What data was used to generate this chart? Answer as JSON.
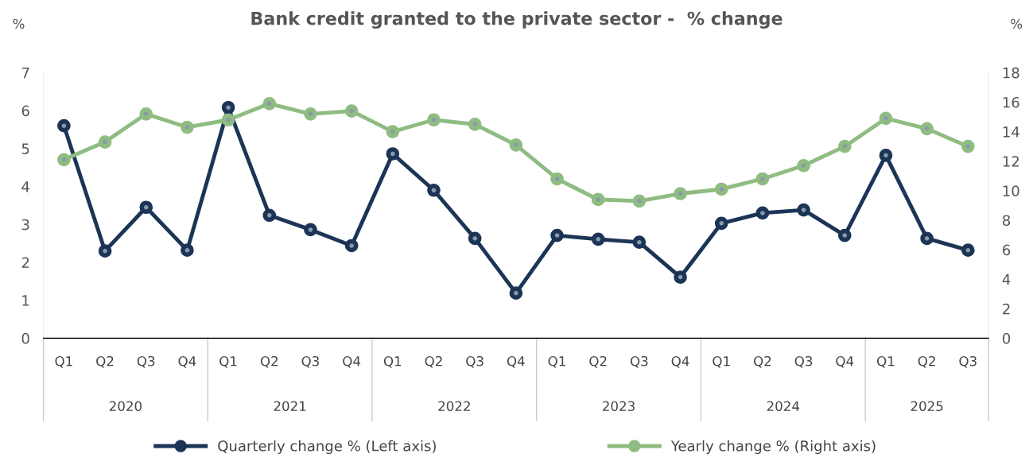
{
  "chart_data": {
    "type": "line",
    "title": "Bank credit granted to the private sector -  % change",
    "ylabel": "%",
    "y2label": "%",
    "categories": [
      "Q1",
      "Q2",
      "Q3",
      "Q4",
      "Q1",
      "Q2",
      "Q3",
      "Q4",
      "Q1",
      "Q2",
      "Q3",
      "Q4",
      "Q1",
      "Q2",
      "Q3",
      "Q4",
      "Q1",
      "Q2",
      "Q3",
      "Q4",
      "Q1",
      "Q2",
      "Q3"
    ],
    "annotations": [
      "2020",
      "2021",
      "2022",
      "2023",
      "2024",
      "2025"
    ],
    "series": [
      {
        "name": "Quarterly change % (Left axis)",
        "color": "#1c3557",
        "values": [
          5.6,
          2.3,
          3.45,
          2.32,
          6.08,
          3.24,
          2.86,
          2.44,
          4.86,
          3.9,
          2.63,
          1.19,
          2.71,
          2.61,
          2.53,
          1.61,
          3.03,
          3.3,
          3.38,
          2.71,
          4.82,
          2.63,
          2.32
        ]
      },
      {
        "name": "Yearly change % (Right axis)",
        "color": "#8fbc81",
        "axis": "y2",
        "values": [
          12.1,
          13.3,
          15.2,
          14.3,
          14.8,
          15.9,
          15.2,
          15.4,
          14.0,
          14.8,
          14.5,
          13.1,
          10.8,
          9.4,
          9.3,
          9.8,
          10.1,
          10.8,
          11.7,
          13.0,
          14.9,
          14.2,
          13.0
        ]
      }
    ],
    "ylim": [
      0,
      7
    ],
    "yticks": [
      0,
      1,
      2,
      3,
      4,
      5,
      6,
      7
    ],
    "y2lim": [
      0,
      18
    ],
    "y2ticks": [
      0,
      2,
      4,
      6,
      8,
      10,
      12,
      14,
      16,
      18
    ],
    "marker": "circle",
    "line_style": "solid",
    "grid": false,
    "legend": "bottom"
  }
}
